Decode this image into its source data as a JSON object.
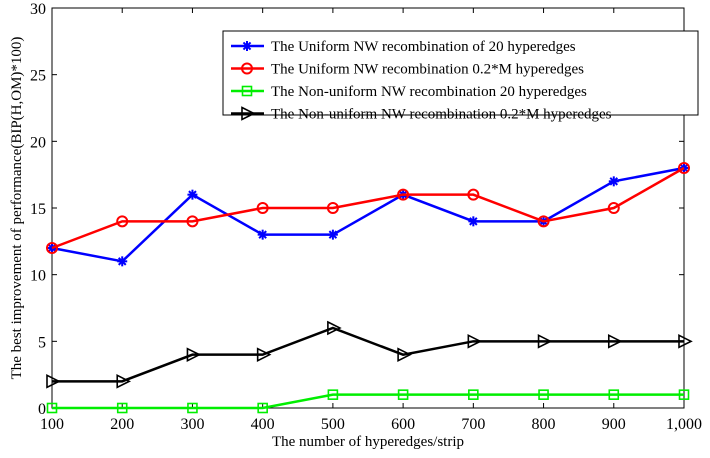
{
  "chart_data": {
    "type": "line",
    "title": "",
    "xlabel": "The number of hyperedges/strip",
    "ylabel": "The best improvement of performance(BIP(H,OM)*100)",
    "x": [
      100,
      200,
      300,
      400,
      500,
      600,
      700,
      800,
      900,
      1000
    ],
    "xtick_labels": [
      "100",
      "200",
      "300",
      "400",
      "500",
      "600",
      "700",
      "800",
      "900",
      "1,000"
    ],
    "ytick_labels": [
      "0",
      "5",
      "10",
      "15",
      "20",
      "25",
      "30"
    ],
    "xlim": [
      100,
      1000
    ],
    "ylim": [
      0,
      30
    ],
    "grid": false,
    "legend_position": "top-right",
    "series": [
      {
        "name": "The Uniform NW recombination of 20 hyperedges",
        "color": "#0000ff",
        "marker": "star",
        "values": [
          12,
          11,
          16,
          13,
          13,
          16,
          14,
          14,
          17,
          18
        ]
      },
      {
        "name": "The Uniform NW recombination 0.2*M hyperedges",
        "color": "#ff0000",
        "marker": "circle",
        "values": [
          12,
          14,
          14,
          15,
          15,
          16,
          16,
          14,
          15,
          18
        ]
      },
      {
        "name": "The Non-uniform NW recombination 20 hyperedges",
        "color": "#00ee00",
        "marker": "square",
        "values": [
          0,
          0,
          0,
          0,
          1,
          1,
          1,
          1,
          1,
          1
        ]
      },
      {
        "name": "The Non-uniform NW recombination 0.2*M hyperedges",
        "color": "#000000",
        "marker": "triangle-right",
        "values": [
          2,
          2,
          4,
          4,
          6,
          4,
          5,
          5,
          5,
          5
        ]
      }
    ]
  }
}
